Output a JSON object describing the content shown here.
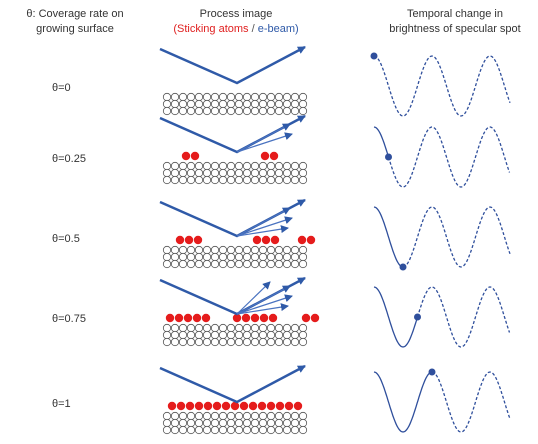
{
  "header": {
    "left": [
      "θ: Coverage rate on",
      "growing surface"
    ],
    "middle": {
      "title": "Process image",
      "open": "(",
      "atoms": "Sticking atoms",
      "slash": " / ",
      "beam": "e-beam",
      "close": ")"
    },
    "right": [
      "Temporal change in",
      "brightness of specular spot"
    ]
  },
  "rows": [
    {
      "label": "θ=0"
    },
    {
      "label": "θ=0.25"
    },
    {
      "label": "θ=0.5"
    },
    {
      "label": "θ=0.75"
    },
    {
      "label": "θ=1"
    }
  ]
}
